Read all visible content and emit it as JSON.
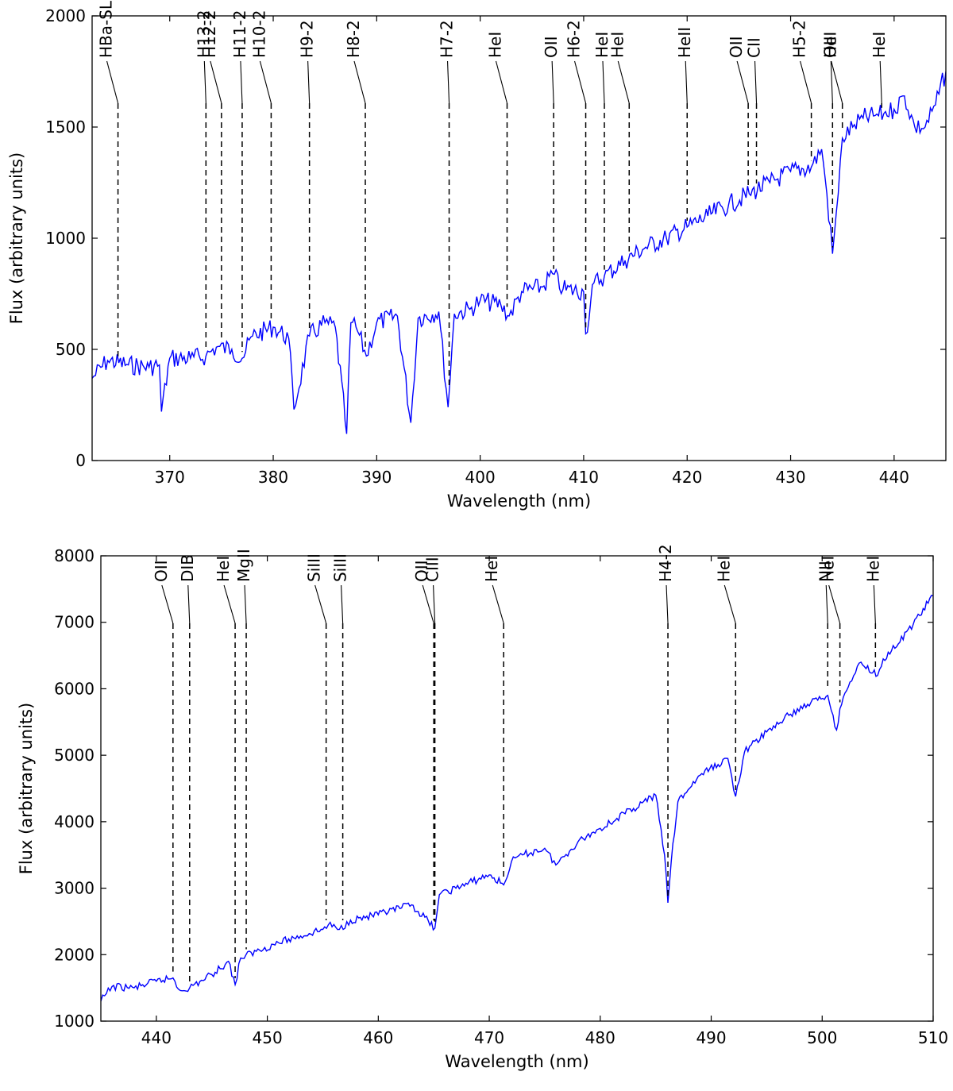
{
  "chart_data": [
    {
      "type": "line",
      "xlabel": "Wavelength (nm)",
      "ylabel": "Flux (arbitrary units)",
      "xlim": [
        362.5,
        445
      ],
      "ylim": [
        0,
        2000
      ],
      "xticks": [
        370,
        380,
        390,
        400,
        410,
        420,
        430,
        440
      ],
      "yticks": [
        0,
        500,
        1000,
        1500,
        2000
      ],
      "color": "#0000ff",
      "series": [
        {
          "x": [
            362.5,
            364,
            366,
            368,
            369,
            369.2,
            370,
            372,
            373.5,
            374.5,
            376,
            377,
            378,
            380,
            381.5,
            382,
            383.5,
            385,
            386,
            387.1,
            387.5,
            388,
            389,
            390,
            392,
            393.3,
            394,
            396,
            396.9,
            397.5,
            399,
            400,
            402,
            402.8,
            404,
            406,
            407,
            408,
            410,
            410.2,
            411,
            412,
            414,
            416,
            418,
            420,
            422,
            424,
            426,
            428,
            430,
            432,
            433,
            433.5,
            434.05,
            434.6,
            435,
            436,
            437,
            438,
            439,
            440,
            441,
            442,
            443,
            444,
            445
          ],
          "y": [
            370,
            450,
            430,
            420,
            430,
            220,
            460,
            460,
            470,
            510,
            500,
            460,
            560,
            600,
            550,
            230,
            560,
            620,
            600,
            120,
            620,
            600,
            470,
            620,
            650,
            170,
            640,
            670,
            240,
            660,
            680,
            720,
            700,
            650,
            760,
            780,
            840,
            770,
            760,
            570,
            800,
            830,
            900,
            960,
            1000,
            1050,
            1100,
            1150,
            1200,
            1250,
            1300,
            1320,
            1400,
            1200,
            930,
            1200,
            1450,
            1500,
            1540,
            1550,
            1560,
            1580,
            1640,
            1500,
            1500,
            1600,
            1750
          ]
        }
      ],
      "lines": [
        {
          "label": "HBa-SL",
          "wavelength": 365
        },
        {
          "label": "H13-2",
          "wavelength": 373.5
        },
        {
          "label": "H12-2",
          "wavelength": 375
        },
        {
          "label": "H11-2",
          "wavelength": 377
        },
        {
          "label": "H10-2",
          "wavelength": 379.8
        },
        {
          "label": "H9-2",
          "wavelength": 383.5
        },
        {
          "label": "H8-2",
          "wavelength": 388.9
        },
        {
          "label": "H7-2",
          "wavelength": 397
        },
        {
          "label": "HeI",
          "wavelength": 402.6
        },
        {
          "label": "OII",
          "wavelength": 407.1
        },
        {
          "label": "H6-2",
          "wavelength": 410.2
        },
        {
          "label": "HeI",
          "wavelength": 412
        },
        {
          "label": "HeI",
          "wavelength": 414.4
        },
        {
          "label": "HeII",
          "wavelength": 420
        },
        {
          "label": "OII",
          "wavelength": 425.9
        },
        {
          "label": "CII",
          "wavelength": 426.7
        },
        {
          "label": "H5-2",
          "wavelength": 432
        },
        {
          "label": "OII",
          "wavelength": 434.05
        },
        {
          "label": "HeI",
          "wavelength": 435
        },
        {
          "label": "HeI",
          "wavelength": 438.8
        }
      ]
    },
    {
      "type": "line",
      "xlabel": "Wavelength (nm)",
      "ylabel": "Flux (arbitrary units)",
      "xlim": [
        435,
        510
      ],
      "ylim": [
        1000,
        8000
      ],
      "xticks": [
        440,
        450,
        460,
        470,
        480,
        490,
        500,
        510
      ],
      "yticks": [
        1000,
        2000,
        3000,
        4000,
        5000,
        6000,
        7000,
        8000
      ],
      "color": "#0000ff",
      "series": [
        {
          "x": [
            435,
            436,
            438,
            440,
            441.5,
            442,
            443,
            445,
            446.5,
            447.1,
            447.6,
            449,
            451,
            453,
            455,
            455.5,
            456.5,
            457.5,
            460,
            463,
            465.1,
            465.5,
            467,
            470,
            471.3,
            472,
            473,
            475,
            476,
            478,
            480,
            483,
            485,
            485.8,
            486.1,
            486.4,
            487,
            489,
            491.5,
            492.2,
            493,
            495,
            497,
            499,
            500.5,
            501.3,
            501.6,
            502.5,
            503.5,
            505,
            505.5,
            507,
            510
          ],
          "y": [
            1300,
            1520,
            1500,
            1600,
            1650,
            1480,
            1500,
            1700,
            1900,
            1550,
            1950,
            2050,
            2180,
            2280,
            2380,
            2450,
            2380,
            2520,
            2600,
            2750,
            2400,
            2900,
            3000,
            3200,
            3050,
            3400,
            3500,
            3600,
            3350,
            3700,
            3900,
            4200,
            4400,
            3500,
            2780,
            3400,
            4300,
            4700,
            4950,
            4380,
            5050,
            5350,
            5600,
            5800,
            5900,
            5380,
            5700,
            6100,
            6400,
            6200,
            6450,
            6700,
            7400
          ]
        }
      ],
      "lines": [
        {
          "label": "OII",
          "wavelength": 441.5
        },
        {
          "label": "DIB",
          "wavelength": 443
        },
        {
          "label": "HeI",
          "wavelength": 447.1
        },
        {
          "label": "MgII",
          "wavelength": 448.1
        },
        {
          "label": "SiIII",
          "wavelength": 455.3
        },
        {
          "label": "SiIII",
          "wavelength": 456.8
        },
        {
          "label": "OII",
          "wavelength": 465
        },
        {
          "label": "CIII",
          "wavelength": 465.1
        },
        {
          "label": "HeI",
          "wavelength": 471.3
        },
        {
          "label": "H4-2",
          "wavelength": 486.1
        },
        {
          "label": "HeI",
          "wavelength": 492.2
        },
        {
          "label": "NII",
          "wavelength": 500.5
        },
        {
          "label": "HeI",
          "wavelength": 501.6
        },
        {
          "label": "HeI",
          "wavelength": 504.8
        }
      ]
    }
  ]
}
